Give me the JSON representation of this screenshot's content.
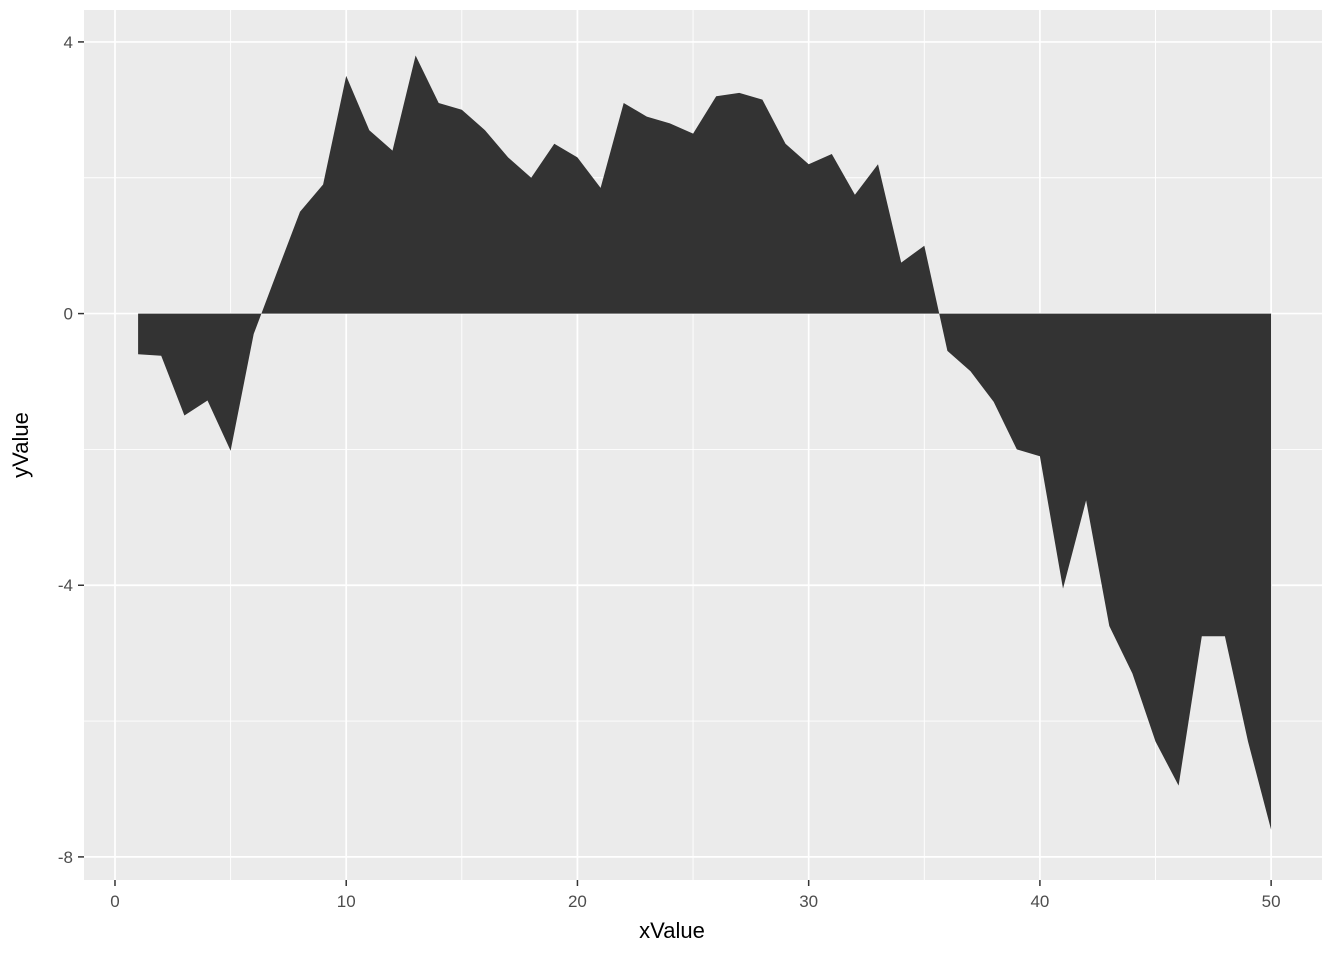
{
  "chart_data": {
    "type": "area",
    "title": "",
    "xlabel": "xValue",
    "ylabel": "yValue",
    "x": [
      1,
      2,
      3,
      4,
      5,
      6,
      7,
      8,
      9,
      10,
      11,
      12,
      13,
      14,
      15,
      16,
      17,
      18,
      19,
      20,
      21,
      22,
      23,
      24,
      25,
      26,
      27,
      28,
      29,
      30,
      31,
      32,
      33,
      34,
      35,
      36,
      37,
      38,
      39,
      40,
      41,
      42,
      43,
      44,
      45,
      46,
      47,
      48,
      49,
      50
    ],
    "y": [
      -0.6,
      -0.62,
      -1.5,
      -1.28,
      -2.02,
      -0.3,
      0.6,
      1.5,
      1.9,
      3.5,
      2.7,
      2.4,
      3.8,
      3.1,
      3.0,
      2.7,
      2.3,
      2.0,
      2.5,
      2.3,
      1.85,
      3.1,
      2.9,
      2.8,
      2.65,
      3.2,
      3.25,
      3.15,
      2.5,
      2.2,
      2.35,
      1.75,
      2.2,
      0.75,
      1.0,
      -0.55,
      -0.85,
      -1.3,
      -2.0,
      -2.1,
      -4.05,
      -2.75,
      -4.6,
      -5.3,
      -6.3,
      -6.95,
      -4.75,
      -4.75,
      -6.3,
      -7.6
    ],
    "baseline": 0,
    "xlim": [
      -1.34,
      52.2
    ],
    "ylim": [
      -8.34,
      4.47
    ],
    "x_major_ticks": [
      0,
      10,
      20,
      30,
      40,
      50
    ],
    "x_minor_ticks": [
      5,
      15,
      25,
      35,
      45
    ],
    "y_major_ticks": [
      4,
      0,
      -4,
      -8
    ],
    "y_minor_ticks": [
      2,
      -2,
      -6
    ],
    "grid": "on",
    "legend": "none",
    "colors": {
      "fill": "#333333",
      "panel_bg": "#ebebeb",
      "grid_major": "#ffffff",
      "grid_minor": "#ffffff",
      "tick_mark": "#333333",
      "tick_text": "#4d4d4d",
      "axis_title": "#000000",
      "page_bg": "#ffffff"
    }
  }
}
